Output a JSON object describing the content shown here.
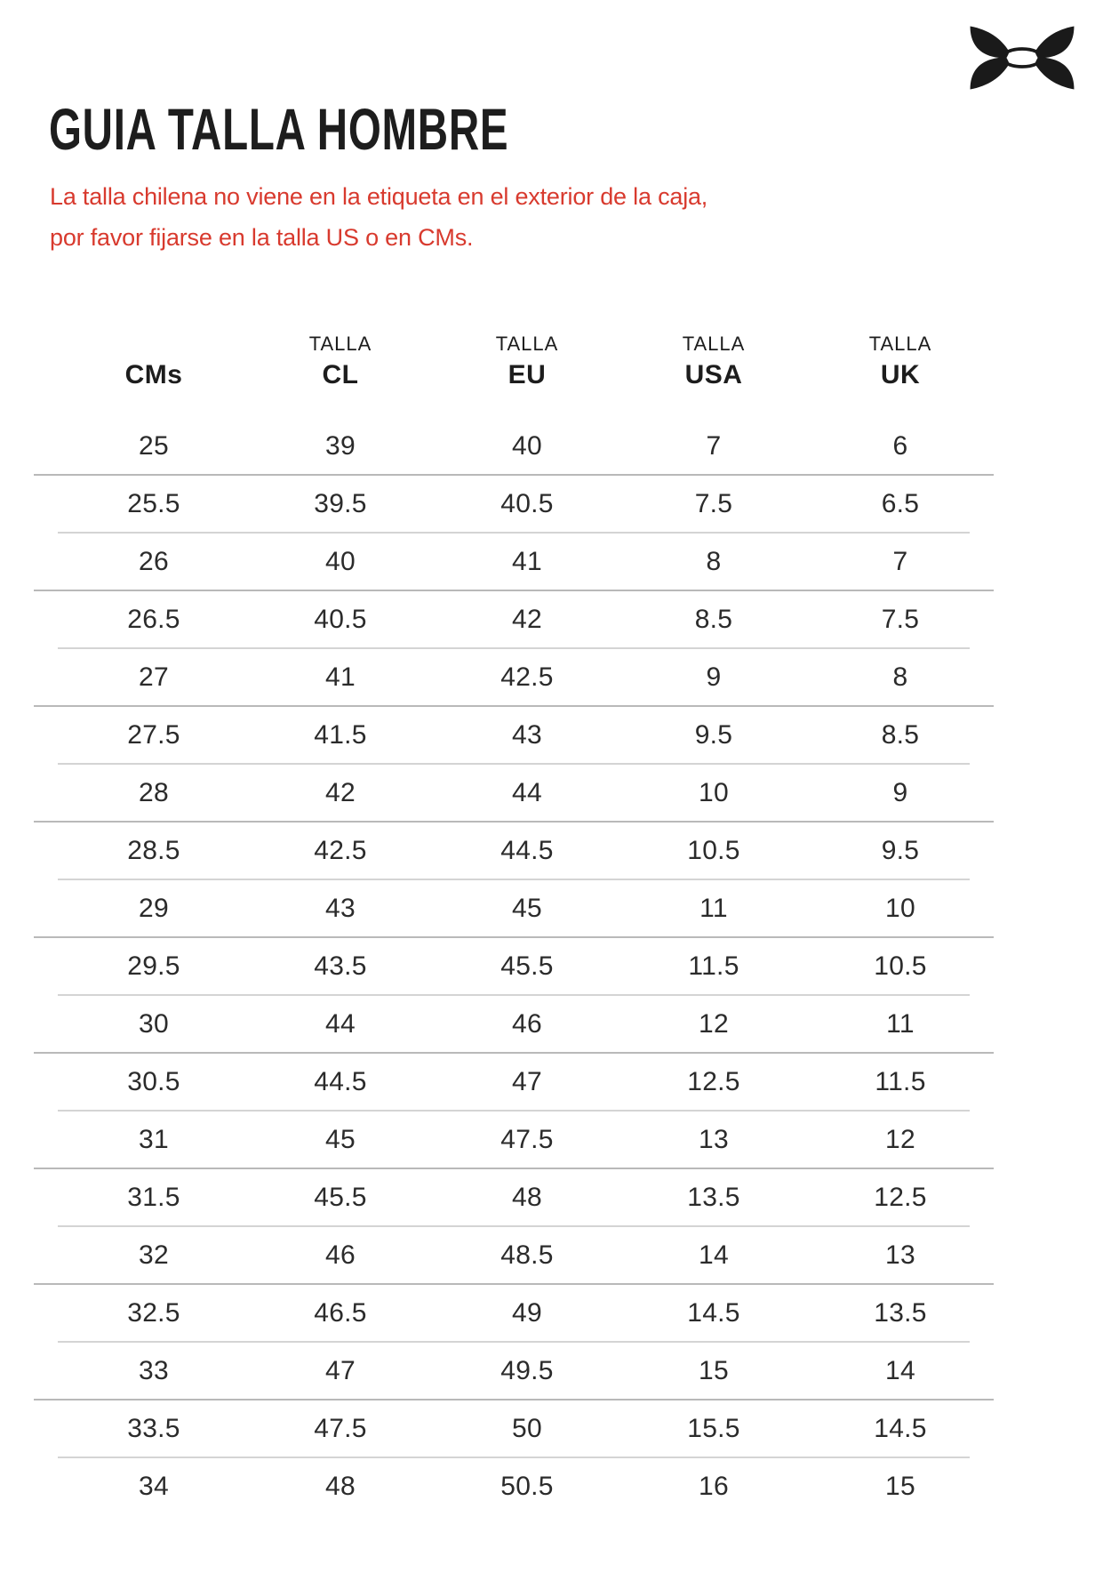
{
  "brand": {
    "logo_icon": "under-armour-logo",
    "logo_color": "#1a1a1a"
  },
  "title": "GUIA TALLA HOMBRE",
  "notice": {
    "color": "#d83a2e",
    "lines": [
      "La talla chilena no viene en la etiqueta en el exterior de la caja,",
      "por favor fijarse en la talla US o en CMs."
    ]
  },
  "table": {
    "columns": [
      {
        "top": "",
        "label": "CMs"
      },
      {
        "top": "TALLA",
        "label": "CL"
      },
      {
        "top": "TALLA",
        "label": "EU"
      },
      {
        "top": "TALLA",
        "label": "USA"
      },
      {
        "top": "TALLA",
        "label": "UK"
      }
    ],
    "rows": [
      [
        "25",
        "39",
        "40",
        "7",
        "6"
      ],
      [
        "25.5",
        "39.5",
        "40.5",
        "7.5",
        "6.5"
      ],
      [
        "26",
        "40",
        "41",
        "8",
        "7"
      ],
      [
        "26.5",
        "40.5",
        "42",
        "8.5",
        "7.5"
      ],
      [
        "27",
        "41",
        "42.5",
        "9",
        "8"
      ],
      [
        "27.5",
        "41.5",
        "43",
        "9.5",
        "8.5"
      ],
      [
        "28",
        "42",
        "44",
        "10",
        "9"
      ],
      [
        "28.5",
        "42.5",
        "44.5",
        "10.5",
        "9.5"
      ],
      [
        "29",
        "43",
        "45",
        "11",
        "10"
      ],
      [
        "29.5",
        "43.5",
        "45.5",
        "11.5",
        "10.5"
      ],
      [
        "30",
        "44",
        "46",
        "12",
        "11"
      ],
      [
        "30.5",
        "44.5",
        "47",
        "12.5",
        "11.5"
      ],
      [
        "31",
        "45",
        "47.5",
        "13",
        "12"
      ],
      [
        "31.5",
        "45.5",
        "48",
        "13.5",
        "12.5"
      ],
      [
        "32",
        "46",
        "48.5",
        "14",
        "13"
      ],
      [
        "32.5",
        "46.5",
        "49",
        "14.5",
        "13.5"
      ],
      [
        "33",
        "47",
        "49.5",
        "15",
        "14"
      ],
      [
        "33.5",
        "47.5",
        "50",
        "15.5",
        "14.5"
      ],
      [
        "34",
        "48",
        "50.5",
        "16",
        "15"
      ]
    ]
  }
}
